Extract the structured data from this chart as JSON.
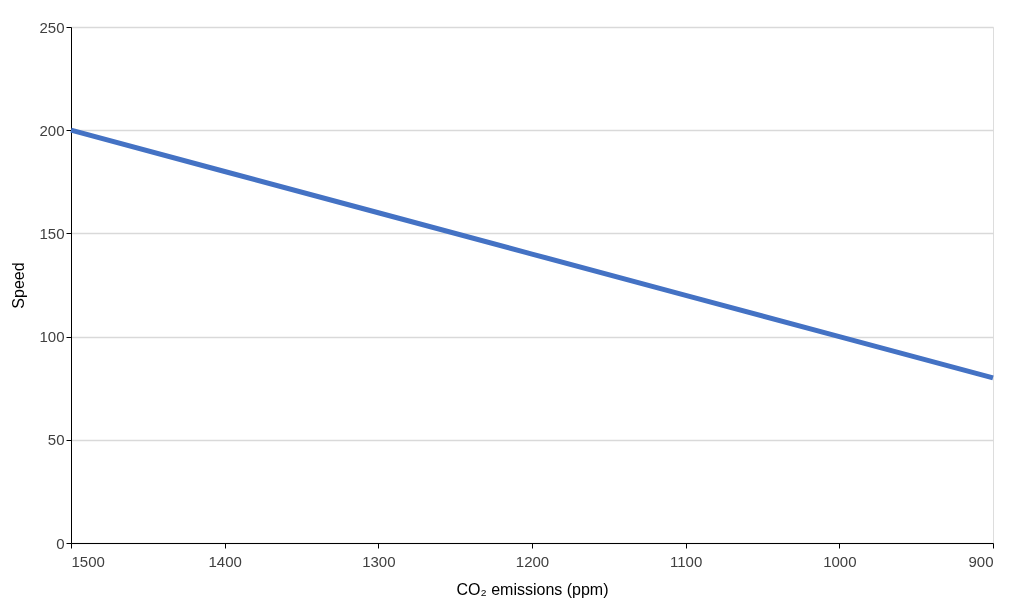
{
  "chart_data": {
    "type": "line",
    "xlabel": "CO₂ emissions (ppm)",
    "ylabel": "Speed",
    "x": [
      1500,
      1400,
      1300,
      1200,
      1100,
      1000,
      900
    ],
    "series": [
      {
        "color": "#4472c4",
        "values": [
          200,
          180,
          160,
          140,
          120,
          100,
          80
        ]
      }
    ],
    "xlim": [
      1500,
      900
    ],
    "ylim": [
      0,
      250
    ],
    "xticks": [
      1500,
      1400,
      1300,
      1200,
      1100,
      1000,
      900
    ],
    "yticks": [
      0,
      50,
      100,
      150,
      200,
      250
    ],
    "grid": "y",
    "marker": "none",
    "line_style": "solid"
  }
}
